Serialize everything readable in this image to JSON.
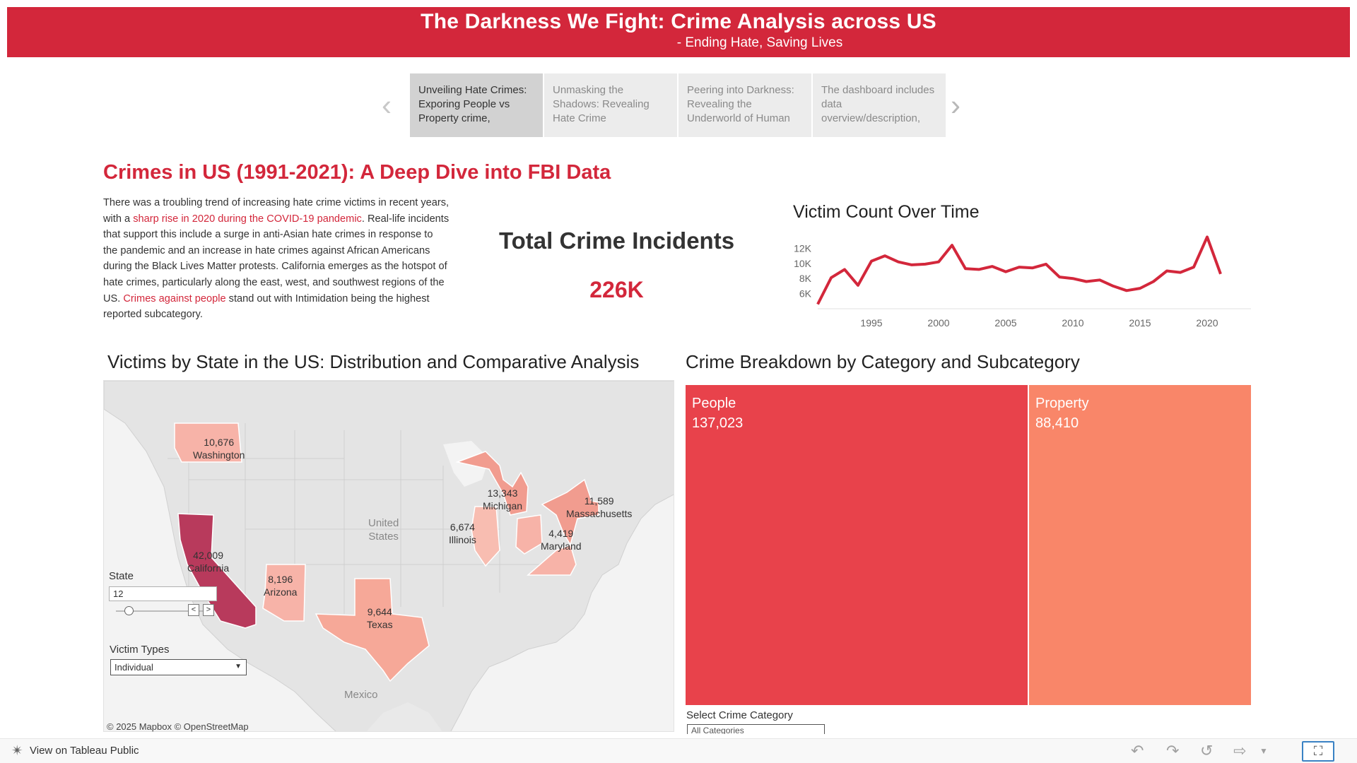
{
  "header": {
    "title": "The Darkness We Fight: Crime Analysis across US",
    "subtitle": "- Ending Hate, Saving Lives"
  },
  "story_points": [
    {
      "label": "Unveiling Hate Crimes: Exporing People vs Property crime,",
      "active": true
    },
    {
      "label": "Unmasking the Shadows: Revealing Hate Crime",
      "active": false
    },
    {
      "label": "Peering into Darkness: Revealing the Underworld of Human",
      "active": false
    },
    {
      "label": "The dashboard includes data overview/description,",
      "active": false
    }
  ],
  "nav_icons": {
    "prev": "chevron-left-icon",
    "next": "chevron-right-icon"
  },
  "main": {
    "title": "Crimes in US (1991-2021): A Deep Dive into FBI Data",
    "description": {
      "p1": "There was a troubling trend of increasing hate crime victims in recent years, with a ",
      "h1": "sharp rise in 2020 during the COVID-19 pandemic",
      "p2": ". Real-life incidents that support this include a surge in anti-Asian hate crimes in response to the pandemic and an increase in hate crimes against African Americans during the Black Lives Matter protests.  California emerges as the hotspot of hate crimes, particularly along the east, west, and southwest regions of the US. ",
      "h2": "Crimes against people",
      "p3": " stand out with Intimidation being the highest reported subcategory."
    }
  },
  "kpi": {
    "label": "Total Crime Incidents",
    "value": "226K"
  },
  "line_chart": {
    "title": "Victim Count Over Time",
    "color": "#d3273b"
  },
  "chart_data": [
    {
      "type": "line",
      "title": "Victim Count Over Time",
      "xlabel": "",
      "ylabel": "",
      "x": [
        1991,
        1992,
        1993,
        1994,
        1995,
        1996,
        1997,
        1998,
        1999,
        2000,
        2001,
        2002,
        2003,
        2004,
        2005,
        2006,
        2007,
        2008,
        2009,
        2010,
        2011,
        2012,
        2013,
        2014,
        2015,
        2016,
        2017,
        2018,
        2019,
        2020,
        2021
      ],
      "series": [
        {
          "values": [
            4600,
            8100,
            9200,
            7100,
            10300,
            11000,
            10200,
            9800,
            9900,
            10200,
            12400,
            9300,
            9200,
            9600,
            8900,
            9500,
            9400,
            9900,
            8200,
            8000,
            7600,
            7800,
            7000,
            6400,
            6700,
            7600,
            9000,
            8800,
            9500,
            13500,
            8600
          ]
        }
      ],
      "xticks": [
        "1995",
        "2000",
        "2005",
        "2010",
        "2015",
        "2020"
      ],
      "yticks": [
        "6K",
        "8K",
        "10K",
        "12K"
      ],
      "ylim": [
        4000,
        14000
      ],
      "grid": false
    },
    {
      "type": "treemap",
      "title": "Crime Breakdown by Category and Subcategory",
      "categories": [
        "People",
        "Property"
      ],
      "values": [
        137023,
        88410
      ],
      "labels": [
        "137,023",
        "88,410"
      ],
      "colors": [
        "#e8424b",
        "#f98669"
      ]
    }
  ],
  "map": {
    "title": "Victims by State in the US: Distribution and Comparative Analysis",
    "credit": "© 2025 Mapbox  © OpenStreetMap",
    "country_labels": {
      "us_line1": "United",
      "us_line2": "States",
      "mexico": "Mexico"
    },
    "states": [
      {
        "name": "Washington",
        "value": "10,676",
        "color": "#f7b3a8"
      },
      {
        "name": "California",
        "value": "42,009",
        "color": "#b83a5c"
      },
      {
        "name": "Arizona",
        "value": "8,196",
        "color": "#f7b3a8"
      },
      {
        "name": "Texas",
        "value": "9,644",
        "color": "#f6a898"
      },
      {
        "name": "Illinois",
        "value": "6,674",
        "color": "#f8bdb1"
      },
      {
        "name": "Michigan",
        "value": "13,343",
        "color": "#f19c8f"
      },
      {
        "name": "Ohio",
        "value": "",
        "color": "#f7b3a8"
      },
      {
        "name": "Maryland",
        "value": "4,419",
        "color": "#f7b3a8"
      },
      {
        "name": "Massachusetts",
        "value": "11,589",
        "color": "#f19c8f"
      }
    ]
  },
  "filters": {
    "state_label": "State",
    "state_value": "12",
    "victim_types_label": "Victim Types",
    "victim_types_value": "Individual",
    "crime_category_label": "Select Crime Category",
    "crime_category_value": "All Categories"
  },
  "treemap_section_title": "Crime Breakdown by Category and Subcategory",
  "footer": {
    "view_link": "View on Tableau Public",
    "icons": [
      "undo-icon",
      "redo-icon",
      "revert-icon",
      "share-icon",
      "fullscreen-icon"
    ]
  }
}
